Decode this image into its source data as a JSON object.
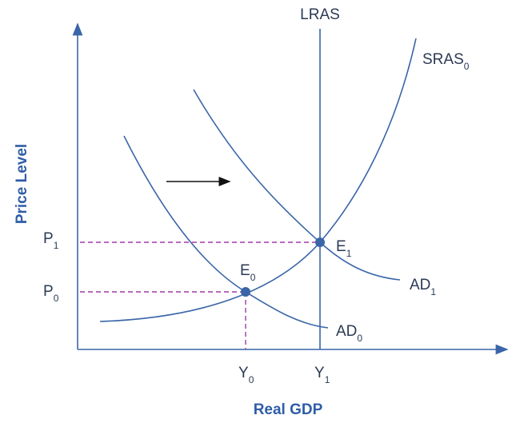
{
  "axes": {
    "y_title": "Price Level",
    "x_title": "Real GDP"
  },
  "curves": {
    "lras": {
      "text": "LRAS"
    },
    "sras": {
      "text": "SRAS",
      "sub": "0"
    },
    "ad1": {
      "text": "AD",
      "sub": "1"
    },
    "ad0": {
      "text": "AD",
      "sub": "0"
    }
  },
  "points": {
    "e0": {
      "text": "E",
      "sub": "0"
    },
    "e1": {
      "text": "E",
      "sub": "1"
    }
  },
  "levels": {
    "p1": {
      "text": "P",
      "sub": "1"
    },
    "p0": {
      "text": "P",
      "sub": "0"
    },
    "y0": {
      "text": "Y",
      "sub": "0"
    },
    "y1": {
      "text": "Y",
      "sub": "1"
    }
  }
}
